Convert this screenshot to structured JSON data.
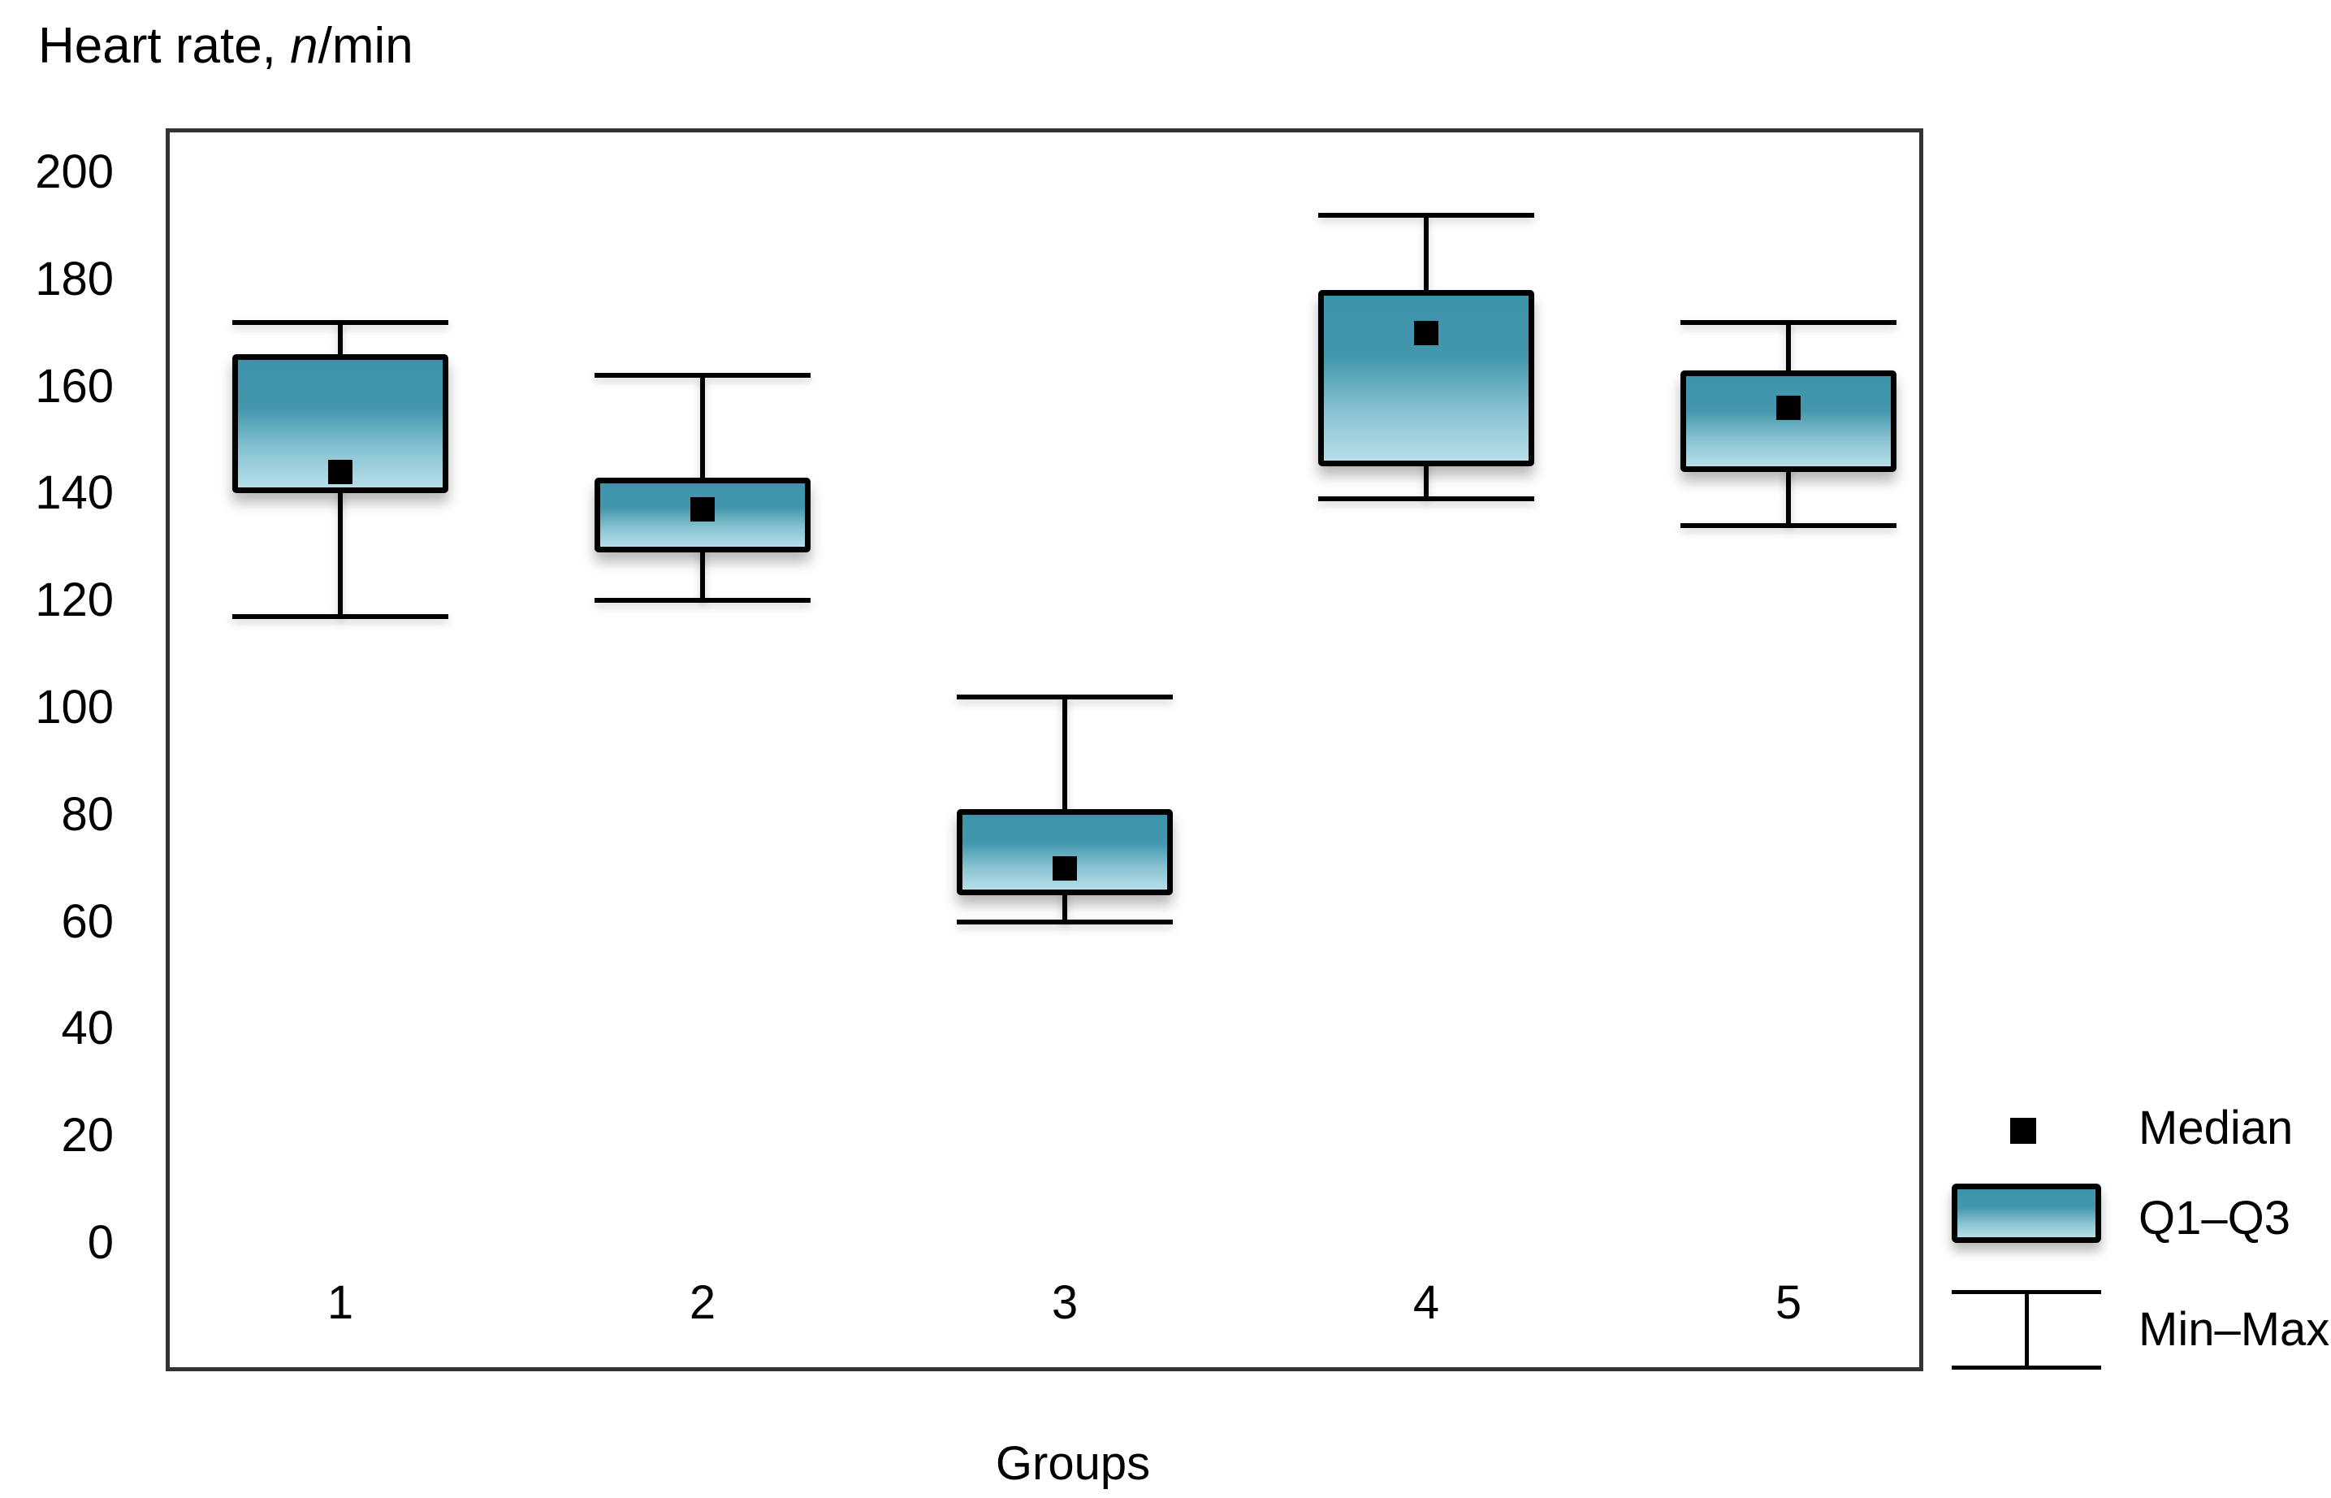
{
  "title": {
    "prefix": "Heart rate, ",
    "italic": "n",
    "suffix": "/min"
  },
  "x_axis_label": "Groups",
  "legend": [
    {
      "key": "median",
      "label": "Median"
    },
    {
      "key": "q1q3",
      "label": "Q1–Q3"
    },
    {
      "key": "minmax",
      "label": "Min–Max"
    }
  ],
  "chart_data": {
    "type": "boxplot",
    "title": "Heart rate, n/min",
    "xlabel": "Groups",
    "ylabel": "Heart rate, n/min",
    "ylim": [
      0,
      200
    ],
    "ytick_step": 20,
    "grid": false,
    "legend_position": "right-bottom",
    "legend_entries": [
      "Median",
      "Q1–Q3",
      "Min–Max"
    ],
    "categories": [
      "1",
      "2",
      "3",
      "4",
      "5"
    ],
    "groups": [
      {
        "category": "1",
        "min": 117,
        "q1": 140,
        "median": 144,
        "q3": 166,
        "max": 172
      },
      {
        "category": "2",
        "min": 120,
        "q1": 129,
        "median": 137,
        "q3": 143,
        "max": 162
      },
      {
        "category": "3",
        "min": 60,
        "q1": 65,
        "median": 70,
        "q3": 81,
        "max": 102
      },
      {
        "category": "4",
        "min": 139,
        "q1": 145,
        "median": 170,
        "q3": 178,
        "max": 192
      },
      {
        "category": "5",
        "min": 134,
        "q1": 144,
        "median": 156,
        "q3": 163,
        "max": 172
      }
    ],
    "colors": {
      "box_gradient_top": "#3D94AA",
      "box_gradient_mid": "#4397AD",
      "box_gradient_light": "#8CC5D4",
      "box_gradient_bottom": "#B5DEE8",
      "stroke": "#000000",
      "frame": "#333333",
      "median": "#000000",
      "background": "#FFFFFF"
    }
  }
}
